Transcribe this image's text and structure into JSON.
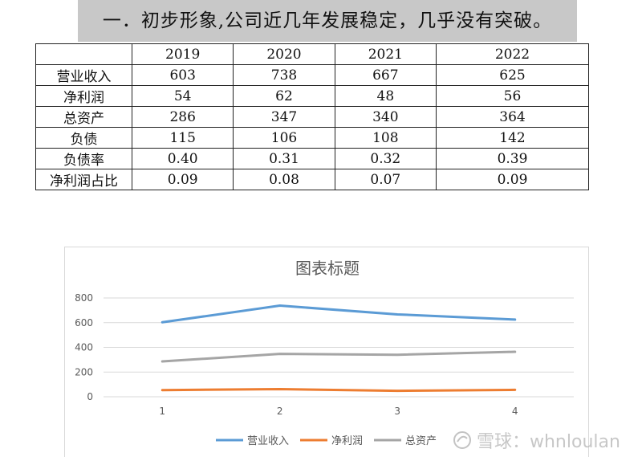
{
  "banner": {
    "title": "一．初步形象,公司近几年发展稳定，几乎没有突破。"
  },
  "table": {
    "headers": [
      "",
      "2019",
      "2020",
      "2021",
      "2022"
    ],
    "rows": [
      {
        "label": "营业收入",
        "values": [
          "603",
          "738",
          "667",
          "625"
        ]
      },
      {
        "label": "净利润",
        "values": [
          "54",
          "62",
          "48",
          "56"
        ]
      },
      {
        "label": "总资产",
        "values": [
          "286",
          "347",
          "340",
          "364"
        ]
      },
      {
        "label": "负债",
        "values": [
          "115",
          "106",
          "108",
          "142"
        ]
      },
      {
        "label": "负债率",
        "values": [
          "0.40",
          "0.31",
          "0.32",
          "0.39"
        ]
      },
      {
        "label": "净利润占比",
        "values": [
          "0.09",
          "0.08",
          "0.07",
          "0.09"
        ]
      }
    ]
  },
  "chart_data": {
    "type": "line",
    "title": "图表标题",
    "x": [
      1,
      2,
      3,
      4
    ],
    "x_tick_labels": [
      "1",
      "2",
      "3",
      "4"
    ],
    "ylim": [
      0,
      800
    ],
    "y_ticks": [
      0,
      200,
      400,
      600,
      800
    ],
    "grid": true,
    "legend_position": "bottom",
    "series": [
      {
        "name": "营业收入",
        "color": "#5b9bd5",
        "values": [
          603,
          738,
          667,
          625
        ]
      },
      {
        "name": "净利润",
        "color": "#ed7d31",
        "values": [
          54,
          62,
          48,
          56
        ]
      },
      {
        "name": "总资产",
        "color": "#a5a5a5",
        "values": [
          286,
          347,
          340,
          364
        ]
      }
    ]
  },
  "watermark": {
    "text": "雪球：whnloulan"
  }
}
